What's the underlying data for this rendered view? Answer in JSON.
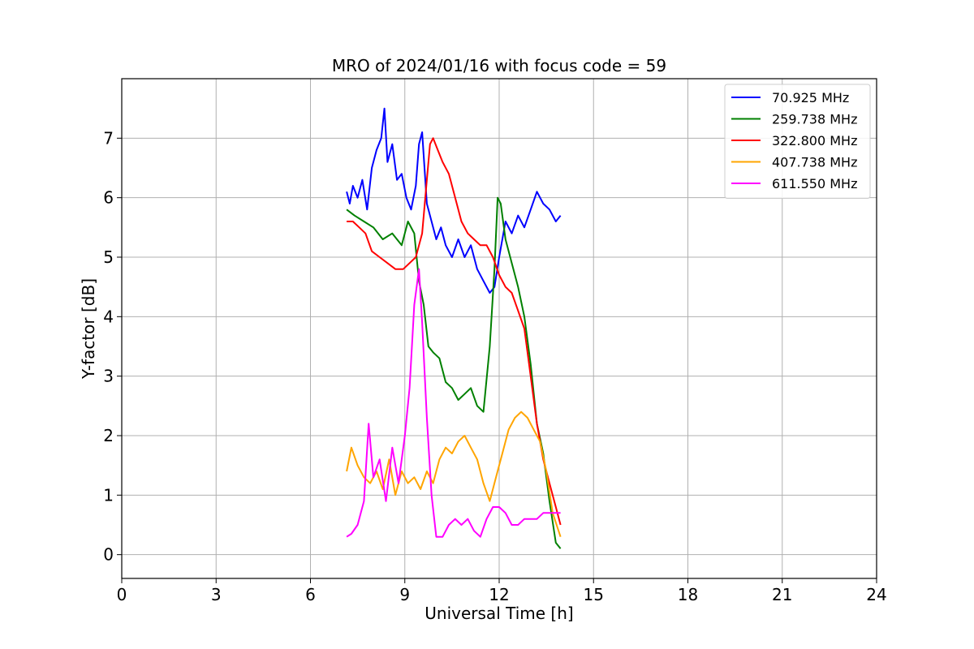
{
  "chart_data": {
    "type": "line",
    "title": "MRO of 2024/01/16 with focus code = 59",
    "xlabel": "Universal Time [h]",
    "ylabel": "Y-factor [dB]",
    "xlim": [
      0,
      24
    ],
    "ylim": [
      -0.4,
      8.0
    ],
    "xticks": [
      0,
      3,
      6,
      9,
      12,
      15,
      18,
      21,
      24
    ],
    "yticks": [
      0,
      1,
      2,
      3,
      4,
      5,
      6,
      7
    ],
    "grid": true,
    "legend_position": "top-right",
    "series": [
      {
        "name": " 70.925 MHz",
        "color": "#0000ff",
        "x": [
          7.15,
          7.25,
          7.35,
          7.5,
          7.65,
          7.8,
          7.95,
          8.1,
          8.25,
          8.35,
          8.45,
          8.6,
          8.75,
          8.9,
          9.05,
          9.2,
          9.35,
          9.45,
          9.55,
          9.7,
          9.85,
          10.0,
          10.15,
          10.3,
          10.5,
          10.7,
          10.9,
          11.1,
          11.3,
          11.5,
          11.7,
          11.85,
          12.0,
          12.2,
          12.4,
          12.6,
          12.8,
          13.0,
          13.2,
          13.4,
          13.6,
          13.8,
          13.95
        ],
        "y": [
          6.1,
          5.9,
          6.2,
          6.0,
          6.3,
          5.8,
          6.5,
          6.8,
          7.0,
          7.5,
          6.6,
          6.9,
          6.3,
          6.4,
          6.0,
          5.8,
          6.2,
          6.9,
          7.1,
          5.9,
          5.6,
          5.3,
          5.5,
          5.2,
          5.0,
          5.3,
          5.0,
          5.2,
          4.8,
          4.6,
          4.4,
          4.5,
          5.0,
          5.6,
          5.4,
          5.7,
          5.5,
          5.8,
          6.1,
          5.9,
          5.8,
          5.6,
          5.7
        ]
      },
      {
        "name": "259.738 MHz",
        "color": "#008000",
        "x": [
          7.15,
          7.4,
          7.7,
          8.0,
          8.3,
          8.6,
          8.9,
          9.1,
          9.3,
          9.45,
          9.6,
          9.75,
          9.9,
          10.1,
          10.3,
          10.5,
          10.7,
          10.9,
          11.1,
          11.3,
          11.5,
          11.7,
          11.85,
          11.95,
          12.05,
          12.2,
          12.4,
          12.6,
          12.8,
          13.0,
          13.2,
          13.4,
          13.6,
          13.8,
          13.95
        ],
        "y": [
          5.8,
          5.7,
          5.6,
          5.5,
          5.3,
          5.4,
          5.2,
          5.6,
          5.4,
          4.6,
          4.2,
          3.5,
          3.4,
          3.3,
          2.9,
          2.8,
          2.6,
          2.7,
          2.8,
          2.5,
          2.4,
          3.5,
          4.8,
          6.0,
          5.9,
          5.3,
          4.9,
          4.5,
          4.0,
          3.2,
          2.2,
          1.7,
          0.9,
          0.2,
          0.1
        ]
      },
      {
        "name": "322.800 MHz",
        "color": "#ff0000",
        "x": [
          7.15,
          7.35,
          7.55,
          7.75,
          7.95,
          8.2,
          8.45,
          8.7,
          8.95,
          9.15,
          9.35,
          9.55,
          9.7,
          9.8,
          9.9,
          10.05,
          10.2,
          10.4,
          10.6,
          10.8,
          11.0,
          11.2,
          11.4,
          11.6,
          11.8,
          12.0,
          12.2,
          12.4,
          12.6,
          12.8,
          13.0,
          13.2,
          13.4,
          13.6,
          13.8,
          13.95
        ],
        "y": [
          5.6,
          5.6,
          5.5,
          5.4,
          5.1,
          5.0,
          4.9,
          4.8,
          4.8,
          4.9,
          5.0,
          5.4,
          6.3,
          6.9,
          7.0,
          6.8,
          6.6,
          6.4,
          6.0,
          5.6,
          5.4,
          5.3,
          5.2,
          5.2,
          5.0,
          4.7,
          4.5,
          4.4,
          4.1,
          3.8,
          3.0,
          2.2,
          1.6,
          1.2,
          0.8,
          0.5
        ]
      },
      {
        "name": "407.738 MHz",
        "color": "#ffa500",
        "x": [
          7.15,
          7.3,
          7.5,
          7.7,
          7.9,
          8.1,
          8.3,
          8.5,
          8.7,
          8.9,
          9.1,
          9.3,
          9.5,
          9.7,
          9.9,
          10.1,
          10.3,
          10.5,
          10.7,
          10.9,
          11.1,
          11.3,
          11.5,
          11.7,
          11.9,
          12.1,
          12.3,
          12.5,
          12.7,
          12.9,
          13.1,
          13.3,
          13.5,
          13.7,
          13.95
        ],
        "y": [
          1.4,
          1.8,
          1.5,
          1.3,
          1.2,
          1.4,
          1.1,
          1.6,
          1.0,
          1.4,
          1.2,
          1.3,
          1.1,
          1.4,
          1.2,
          1.6,
          1.8,
          1.7,
          1.9,
          2.0,
          1.8,
          1.6,
          1.2,
          0.9,
          1.3,
          1.7,
          2.1,
          2.3,
          2.4,
          2.3,
          2.1,
          1.9,
          1.4,
          0.7,
          0.3
        ]
      },
      {
        "name": "611.550 MHz",
        "color": "#ff00ff",
        "x": [
          7.15,
          7.3,
          7.5,
          7.7,
          7.85,
          8.0,
          8.2,
          8.4,
          8.6,
          8.8,
          9.0,
          9.15,
          9.3,
          9.45,
          9.55,
          9.7,
          9.85,
          10.0,
          10.2,
          10.4,
          10.6,
          10.8,
          11.0,
          11.2,
          11.4,
          11.6,
          11.8,
          12.0,
          12.2,
          12.4,
          12.6,
          12.8,
          13.0,
          13.2,
          13.4,
          13.6,
          13.8,
          13.95
        ],
        "y": [
          0.3,
          0.35,
          0.5,
          0.9,
          2.2,
          1.3,
          1.6,
          0.9,
          1.8,
          1.2,
          2.0,
          2.8,
          4.2,
          4.8,
          3.9,
          2.3,
          1.0,
          0.3,
          0.3,
          0.5,
          0.6,
          0.5,
          0.6,
          0.4,
          0.3,
          0.6,
          0.8,
          0.8,
          0.7,
          0.5,
          0.5,
          0.6,
          0.6,
          0.6,
          0.7,
          0.7,
          0.7,
          0.7
        ]
      }
    ]
  }
}
